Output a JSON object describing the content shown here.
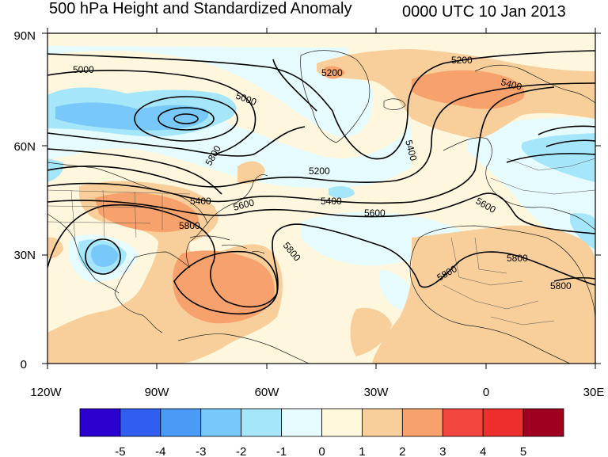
{
  "title": {
    "left": "500 hPa Height and Standardized Anomaly",
    "right": "0000 UTC 10 Jan 2013"
  },
  "lat_labels": [
    "90N",
    "60N",
    "30N",
    "0"
  ],
  "lon_labels": [
    "120W",
    "90W",
    "60W",
    "30W",
    "0",
    "30E"
  ],
  "contour_labels": [
    "5000",
    "5000",
    "5200",
    "5200",
    "5200",
    "5400",
    "5400",
    "5400",
    "5400",
    "5600",
    "5600",
    "5600",
    "5800",
    "5800",
    "5800",
    "5800",
    "5800",
    "5800"
  ],
  "colorbar": {
    "labels": [
      "-5",
      "-4",
      "-3",
      "-2",
      "-1",
      "0",
      "1",
      "2",
      "3",
      "4",
      "5"
    ],
    "colors": [
      "#2a00d0",
      "#2f5ef0",
      "#4a9af6",
      "#79c8fa",
      "#a6e6fa",
      "#e6fbfd",
      "#fff8dc",
      "#f8cf9a",
      "#f7a26c",
      "#f2453e",
      "#ee2d2d",
      "#a00020"
    ]
  },
  "colors": {
    "land_bg": "#fff7dd",
    "pos_anom_1": "#f8cf9a",
    "pos_anom_2": "#f7a26c",
    "neg_anom_1": "#dff7fb",
    "neg_anom_2": "#a6e6fa",
    "neg_anom_3": "#79c8fa"
  }
}
